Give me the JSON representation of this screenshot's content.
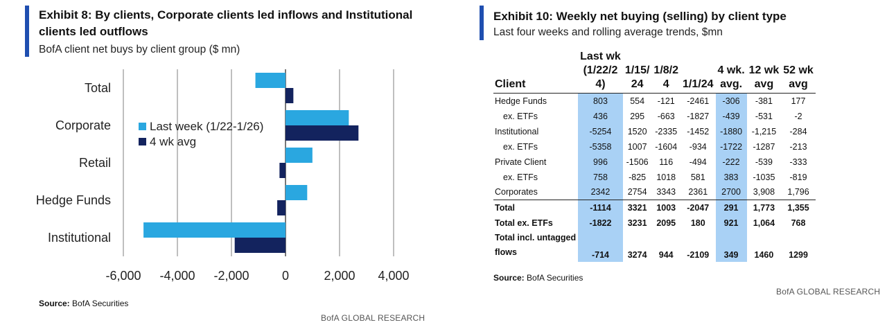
{
  "left": {
    "title_line1": "Exhibit 8: By clients, Corporate clients led inflows and Institutional",
    "title_line2": "clients led outflows",
    "subtitle": "BofA client net buys by client group ($ mn)",
    "source_label": "Source:",
    "source_text": " BofA Securities",
    "brand": "BofA GLOBAL RESEARCH"
  },
  "right": {
    "title": "Exhibit 10: Weekly net buying (selling) by client type",
    "subtitle": "Last four weeks and rolling average trends, $mn",
    "source_label": "Source:",
    "source_text": " BofA Securities",
    "brand": "BofA GLOBAL RESEARCH"
  },
  "colors": {
    "accent": "#1f4fb0",
    "last_week": "#2aa7e0",
    "four_wk_avg": "#13235e",
    "highlight": "#a9d1f5",
    "grid": "#bfbfbf"
  },
  "chart_data": {
    "type": "bar",
    "orientation": "horizontal",
    "title": "Exhibit 8: By clients, Corporate clients led inflows and Institutional clients led outflows",
    "subtitle": "BofA client net buys by client group ($ mn)",
    "categories": [
      "Total",
      "Corporate",
      "Retail",
      "Hedge Funds",
      "Institutional"
    ],
    "series": [
      {
        "name": "Last week (1/22-1/26)",
        "color": "#2aa7e0",
        "values": [
          -1114,
          2342,
          996,
          803,
          -5254
        ]
      },
      {
        "name": "4 wk avg",
        "color": "#13235e",
        "values": [
          291,
          2700,
          -222,
          -306,
          -1880
        ]
      }
    ],
    "xlim": [
      -6000,
      4000
    ],
    "xticks": [
      -6000,
      -4000,
      -2000,
      0,
      2000,
      4000
    ],
    "xtick_labels": [
      "-6,000",
      "-4,000",
      "-2,000",
      "0",
      "2,000",
      "4,000"
    ],
    "grid": "vertical",
    "legend_position": "upper-left"
  },
  "table": {
    "headers": [
      {
        "lines": [
          "Client"
        ]
      },
      {
        "lines": [
          "Last wk",
          "(1/22/2",
          "4)"
        ]
      },
      {
        "lines": [
          "1/15/",
          "24"
        ]
      },
      {
        "lines": [
          "1/8/2",
          "4"
        ]
      },
      {
        "lines": [
          "1/1/24"
        ]
      },
      {
        "lines": [
          "4 wk.",
          "avg."
        ]
      },
      {
        "lines": [
          "12 wk",
          "avg"
        ]
      },
      {
        "lines": [
          "52 wk",
          "avg"
        ]
      }
    ],
    "rows": [
      {
        "client": "Hedge Funds",
        "indent": false,
        "bold": false,
        "values": [
          "803",
          "554",
          "-121",
          "-2461",
          "-306",
          "-381",
          "177"
        ]
      },
      {
        "client": "ex. ETFs",
        "indent": true,
        "bold": false,
        "values": [
          "436",
          "295",
          "-663",
          "-1827",
          "-439",
          "-531",
          "-2"
        ]
      },
      {
        "client": "Institutional",
        "indent": false,
        "bold": false,
        "values": [
          "-5254",
          "1520",
          "-2335",
          "-1452",
          "-1880",
          "-1,215",
          "-284"
        ]
      },
      {
        "client": "ex. ETFs",
        "indent": true,
        "bold": false,
        "values": [
          "-5358",
          "1007",
          "-1604",
          "-934",
          "-1722",
          "-1287",
          "-213"
        ]
      },
      {
        "client": "Private Client",
        "indent": false,
        "bold": false,
        "values": [
          "996",
          "-1506",
          "116",
          "-494",
          "-222",
          "-539",
          "-333"
        ]
      },
      {
        "client": "ex. ETFs",
        "indent": true,
        "bold": false,
        "values": [
          "758",
          "-825",
          "1018",
          "581",
          "383",
          "-1035",
          "-819"
        ]
      },
      {
        "client": "Corporates",
        "indent": false,
        "bold": false,
        "values": [
          "2342",
          "2754",
          "3343",
          "2361",
          "2700",
          "3,908",
          "1,796"
        ]
      },
      {
        "client": "Total",
        "indent": false,
        "bold": true,
        "sep": true,
        "values": [
          "-1114",
          "3321",
          "1003",
          "-2047",
          "291",
          "1,773",
          "1,355"
        ]
      },
      {
        "client": "Total ex. ETFs",
        "indent": false,
        "bold": true,
        "values": [
          "-1822",
          "3231",
          "2095",
          "180",
          "921",
          "1,064",
          "768"
        ]
      },
      {
        "client_lines": [
          "Total incl. untagged",
          "flows"
        ],
        "indent": false,
        "bold": true,
        "tall": true,
        "values": [
          "-714",
          "3274",
          "944",
          "-2109",
          "349",
          "1460",
          "1299"
        ]
      }
    ]
  }
}
